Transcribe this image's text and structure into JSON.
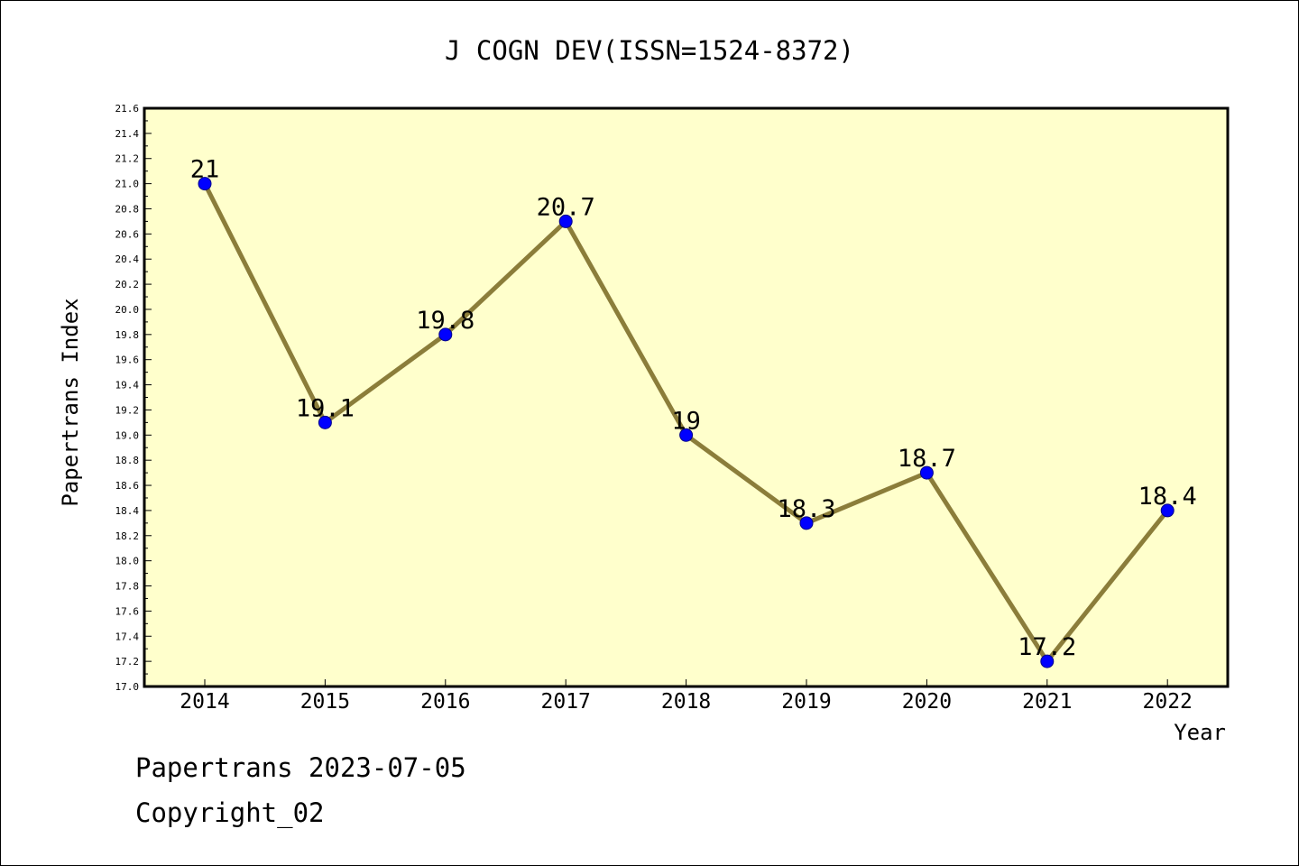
{
  "footer": {
    "line1": "Papertrans 2023-07-05",
    "line2": "Copyright_02"
  },
  "colors": {
    "plot_background": "#ffffcc",
    "line": "#8b7d3a",
    "marker": "#0000ff",
    "frame": "#000000"
  },
  "chart_data": {
    "type": "line",
    "title": "J COGN DEV(ISSN=1524-8372)",
    "xlabel": "Year",
    "ylabel": "Papertrans Index",
    "categories": [
      "2014",
      "2015",
      "2016",
      "2017",
      "2018",
      "2019",
      "2020",
      "2021",
      "2022"
    ],
    "series": [
      {
        "values": [
          21,
          19.1,
          19.8,
          20.7,
          19,
          18.3,
          18.7,
          17.2,
          18.4
        ],
        "labels": [
          "21",
          "19.1",
          "19.8",
          "20.7",
          "19",
          "18.3",
          "18.7",
          "17.2",
          "18.4"
        ]
      }
    ],
    "ylim": [
      17.0,
      21.6
    ],
    "y_ticks": [
      "17.0",
      "17.2",
      "17.4",
      "17.6",
      "17.8",
      "18.0",
      "18.2",
      "18.4",
      "18.6",
      "18.8",
      "19.0",
      "19.2",
      "19.4",
      "19.6",
      "19.8",
      "20.0",
      "20.2",
      "20.4",
      "20.6",
      "20.8",
      "21.0",
      "21.2",
      "21.4",
      "21.6"
    ],
    "grid": false,
    "legend": "none"
  }
}
